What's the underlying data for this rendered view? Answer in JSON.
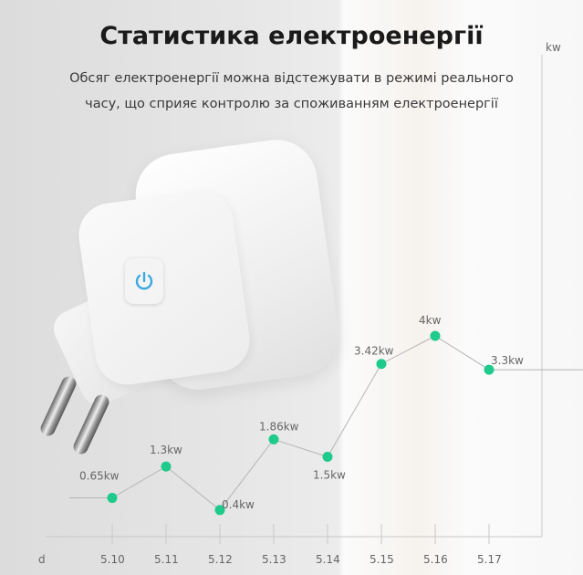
{
  "header": {
    "title": "Статистика електроенергії",
    "subtitle_line1": "Обсяг електроенергії можна відстежувати в режимі реального",
    "subtitle_line2": "часу, що сприяє контролю за споживанням електроенергії"
  },
  "product": {
    "icon": "power-icon",
    "accent": "#3ba9e0"
  },
  "chart_data": {
    "type": "line",
    "xlabel": "d",
    "ylabel": "kw",
    "categories": [
      "5.10",
      "5.11",
      "5.12",
      "5.13",
      "5.14",
      "5.15",
      "5.16",
      "5.17"
    ],
    "values": [
      0.65,
      1.3,
      0.4,
      1.86,
      1.5,
      3.42,
      4,
      3.3
    ],
    "data_labels": [
      "0.65kw",
      "1.3kw",
      "0.4kw",
      "1.86kw",
      "1.5kw",
      "3.42kw",
      "4kw",
      "3.3kw"
    ],
    "grid": false,
    "marker_color": "#1ecb8c",
    "line_color": "#b5b5b5"
  }
}
